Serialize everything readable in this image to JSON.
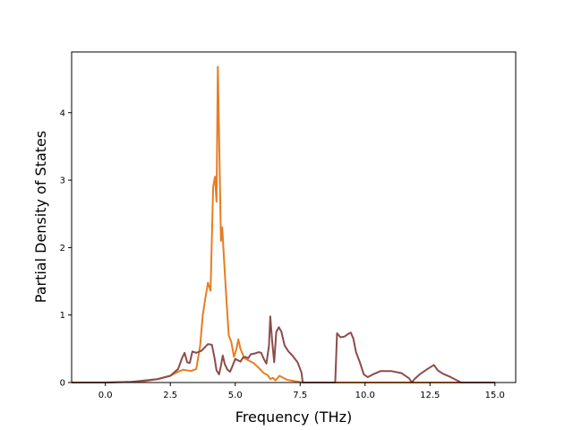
{
  "chart_data": {
    "type": "line",
    "title": "",
    "xlabel": "Frequency (THz)",
    "ylabel": "Partial Density of States",
    "xlim": [
      -1.3,
      15.8
    ],
    "ylim": [
      0,
      4.9
    ],
    "xticks": [
      0.0,
      2.5,
      5.0,
      7.5,
      10.0,
      12.5,
      15.0
    ],
    "xtick_labels": [
      "0.0",
      "2.5",
      "5.0",
      "7.5",
      "10.0",
      "12.5",
      "15.0"
    ],
    "yticks": [
      0,
      1,
      2,
      3,
      4
    ],
    "ytick_labels": [
      "0",
      "1",
      "2",
      "3",
      "4"
    ],
    "grid": false,
    "legend": null,
    "series": [
      {
        "color": "#e87d22",
        "points": [
          [
            -1.3,
            0
          ],
          [
            0,
            0
          ],
          [
            0.5,
            0.005
          ],
          [
            1.0,
            0.01
          ],
          [
            1.5,
            0.02
          ],
          [
            2.0,
            0.05
          ],
          [
            2.5,
            0.1
          ],
          [
            2.8,
            0.16
          ],
          [
            3.0,
            0.19
          ],
          [
            3.3,
            0.17
          ],
          [
            3.5,
            0.2
          ],
          [
            3.65,
            0.55
          ],
          [
            3.75,
            1.0
          ],
          [
            3.85,
            1.25
          ],
          [
            3.95,
            1.48
          ],
          [
            4.05,
            1.36
          ],
          [
            4.15,
            2.9
          ],
          [
            4.22,
            3.05
          ],
          [
            4.28,
            2.68
          ],
          [
            4.33,
            4.68
          ],
          [
            4.4,
            3.2
          ],
          [
            4.45,
            2.1
          ],
          [
            4.5,
            2.3
          ],
          [
            4.55,
            1.95
          ],
          [
            4.65,
            1.3
          ],
          [
            4.75,
            0.7
          ],
          [
            4.85,
            0.6
          ],
          [
            4.95,
            0.38
          ],
          [
            5.05,
            0.5
          ],
          [
            5.12,
            0.64
          ],
          [
            5.2,
            0.5
          ],
          [
            5.35,
            0.36
          ],
          [
            5.5,
            0.33
          ],
          [
            5.7,
            0.29
          ],
          [
            5.9,
            0.22
          ],
          [
            6.1,
            0.14
          ],
          [
            6.25,
            0.11
          ],
          [
            6.35,
            0.05
          ],
          [
            6.45,
            0.07
          ],
          [
            6.55,
            0.03
          ],
          [
            6.7,
            0.1
          ],
          [
            6.85,
            0.07
          ],
          [
            7.0,
            0.04
          ],
          [
            7.3,
            0.02
          ],
          [
            7.6,
            0
          ],
          [
            15.0,
            0
          ]
        ]
      },
      {
        "color": "#8c4c4a",
        "points": [
          [
            -1.3,
            0
          ],
          [
            0,
            0
          ],
          [
            0.5,
            0.005
          ],
          [
            1.0,
            0.01
          ],
          [
            1.5,
            0.03
          ],
          [
            2.0,
            0.05
          ],
          [
            2.5,
            0.1
          ],
          [
            2.8,
            0.2
          ],
          [
            2.95,
            0.36
          ],
          [
            3.05,
            0.44
          ],
          [
            3.15,
            0.3
          ],
          [
            3.25,
            0.29
          ],
          [
            3.35,
            0.46
          ],
          [
            3.5,
            0.44
          ],
          [
            3.7,
            0.47
          ],
          [
            3.85,
            0.53
          ],
          [
            3.95,
            0.57
          ],
          [
            4.1,
            0.56
          ],
          [
            4.2,
            0.37
          ],
          [
            4.28,
            0.18
          ],
          [
            4.38,
            0.12
          ],
          [
            4.45,
            0.25
          ],
          [
            4.52,
            0.4
          ],
          [
            4.6,
            0.27
          ],
          [
            4.7,
            0.19
          ],
          [
            4.8,
            0.16
          ],
          [
            4.9,
            0.25
          ],
          [
            5.0,
            0.35
          ],
          [
            5.1,
            0.33
          ],
          [
            5.2,
            0.31
          ],
          [
            5.3,
            0.37
          ],
          [
            5.4,
            0.38
          ],
          [
            5.5,
            0.36
          ],
          [
            5.6,
            0.42
          ],
          [
            5.75,
            0.43
          ],
          [
            5.9,
            0.45
          ],
          [
            6.0,
            0.44
          ],
          [
            6.1,
            0.35
          ],
          [
            6.2,
            0.28
          ],
          [
            6.3,
            0.55
          ],
          [
            6.35,
            0.98
          ],
          [
            6.42,
            0.62
          ],
          [
            6.5,
            0.3
          ],
          [
            6.58,
            0.75
          ],
          [
            6.68,
            0.82
          ],
          [
            6.78,
            0.75
          ],
          [
            6.9,
            0.55
          ],
          [
            7.05,
            0.46
          ],
          [
            7.2,
            0.4
          ],
          [
            7.4,
            0.3
          ],
          [
            7.55,
            0.15
          ],
          [
            7.6,
            0
          ],
          [
            8.85,
            0
          ],
          [
            8.92,
            0.73
          ],
          [
            9.05,
            0.67
          ],
          [
            9.2,
            0.68
          ],
          [
            9.35,
            0.72
          ],
          [
            9.45,
            0.74
          ],
          [
            9.55,
            0.65
          ],
          [
            9.65,
            0.45
          ],
          [
            9.8,
            0.3
          ],
          [
            9.95,
            0.12
          ],
          [
            10.1,
            0.08
          ],
          [
            10.3,
            0.12
          ],
          [
            10.6,
            0.17
          ],
          [
            11.0,
            0.17
          ],
          [
            11.4,
            0.14
          ],
          [
            11.7,
            0.06
          ],
          [
            11.8,
            0
          ],
          [
            11.9,
            0.05
          ],
          [
            12.1,
            0.12
          ],
          [
            12.4,
            0.2
          ],
          [
            12.65,
            0.26
          ],
          [
            12.8,
            0.18
          ],
          [
            13.0,
            0.13
          ],
          [
            13.3,
            0.08
          ],
          [
            13.6,
            0.02
          ],
          [
            13.7,
            0
          ],
          [
            15.0,
            0
          ]
        ]
      }
    ]
  }
}
